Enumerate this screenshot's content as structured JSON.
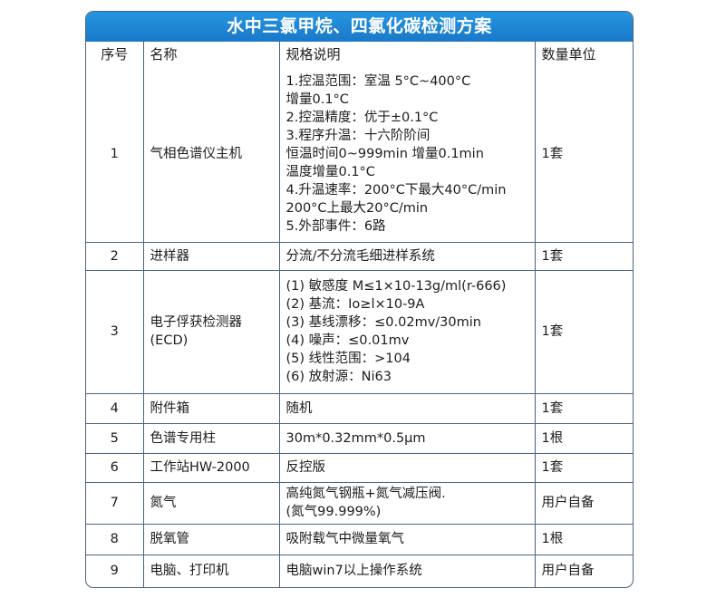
{
  "title": "水中三氯甲烷、四氯化碳检测方案",
  "headers": {
    "no": "序号",
    "name": "名称",
    "spec": "规格说明",
    "qty": "数量单位"
  },
  "rows": [
    {
      "no": "1",
      "name": "气相色谱仪主机",
      "spec": "1.控温范围：室温 5°C~400°C\n增量0.1°C\n2.控温精度：优于±0.1°C\n3.程序升温：十六阶阶间\n恒温时间0~999min 增量0.1min\n温度增量0.1°C\n4.升温速率：200°C下最大40°C/min\n200°C上最大20°C/min\n5.外部事件：6路",
      "qty": "1套"
    },
    {
      "no": "2",
      "name": "进样器",
      "spec": "分流/不分流毛细进样系统",
      "qty": "1套"
    },
    {
      "no": "3",
      "name": "电子俘获检测器\n(ECD)",
      "spec": "(1) 敏感度 M≤1×10-13g/ml(r-666)\n(2) 基流：Io≥l×10-9A\n(3) 基线漂移：≤0.02mv/30min\n(4) 噪声：≤0.01mv\n(5) 线性范围：>104\n(6) 放射源：Ni63",
      "qty": "1套"
    },
    {
      "no": "4",
      "name": "附件箱",
      "spec": "随机",
      "qty": "1套"
    },
    {
      "no": "5",
      "name": "色谱专用柱",
      "spec": "30m*0.32mm*0.5μm",
      "qty": "1根"
    },
    {
      "no": "6",
      "name": "工作站HW-2000",
      "spec": "反控版",
      "qty": "1套"
    },
    {
      "no": "7",
      "name": "氮气",
      "spec": "高纯氮气钢瓶+氮气减压阀.\n(氮气99.999%)",
      "qty": "用户自备"
    },
    {
      "no": "8",
      "name": "脱氧管",
      "spec": "吸附载气中微量氧气",
      "qty": "1根"
    },
    {
      "no": "9",
      "name": "电脑、打印机",
      "spec": "电脑win7以上操作系统",
      "qty": "用户自备"
    }
  ]
}
